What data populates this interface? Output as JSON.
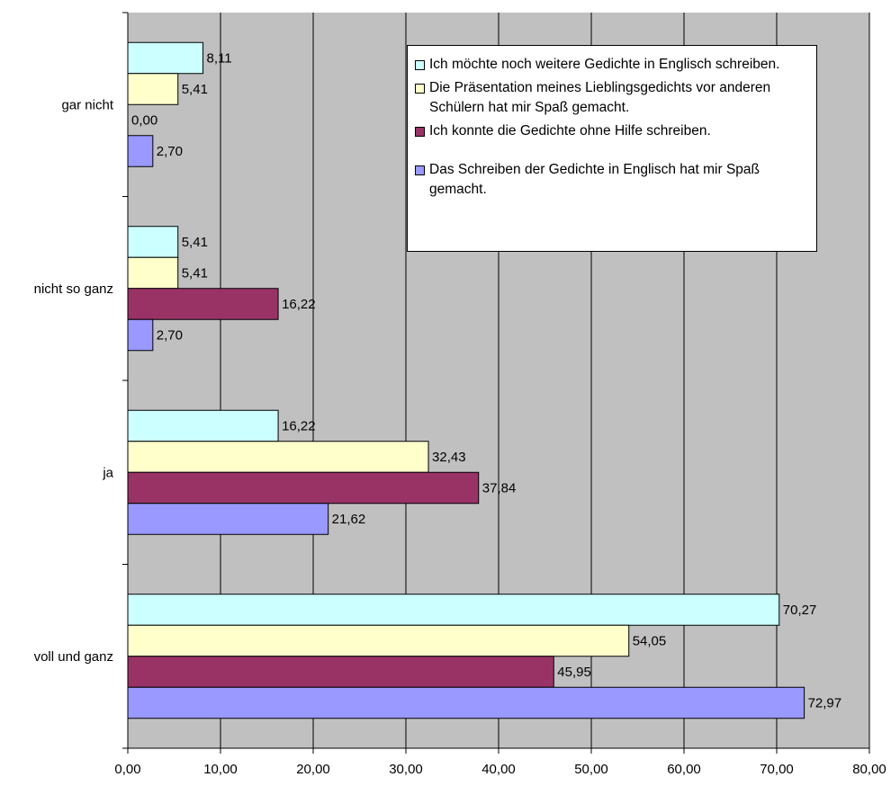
{
  "chart_data": {
    "type": "bar",
    "orientation": "horizontal",
    "categories": [
      "gar nicht",
      "nicht so ganz",
      "ja",
      "voll und ganz"
    ],
    "series": [
      {
        "name": "Ich möchte noch weitere Gedichte in Englisch schreiben.",
        "color": "#ccffff",
        "values": [
          8.11,
          5.41,
          16.22,
          70.27
        ],
        "labels": [
          "8,11",
          "5,41",
          "16,22",
          "70,27"
        ]
      },
      {
        "name": "Die Präsentation meines Lieblingsgedichts vor anderen Schülern hat mir Spaß gemacht.",
        "color": "#ffffcc",
        "values": [
          5.41,
          5.41,
          32.43,
          54.05
        ],
        "labels": [
          "5,41",
          "5,41",
          "32,43",
          "54,05"
        ]
      },
      {
        "name": "Ich konnte die Gedichte ohne Hilfe schreiben.",
        "color": "#993366",
        "values": [
          0.0,
          16.22,
          37.84,
          45.95
        ],
        "labels": [
          "0,00",
          "16,22",
          "37,84",
          "45,95"
        ]
      },
      {
        "name": "Das Schreiben der Gedichte in Englisch hat mir Spaß gemacht.",
        "color": "#9999ff",
        "values": [
          2.7,
          2.7,
          21.62,
          72.97
        ],
        "labels": [
          "2,70",
          "2,70",
          "21,62",
          "72,97"
        ]
      }
    ],
    "xlim": [
      0,
      80
    ],
    "xticks": [
      0,
      10,
      20,
      30,
      40,
      50,
      60,
      70,
      80
    ],
    "xtick_labels": [
      "0,00",
      "10,00",
      "20,00",
      "30,00",
      "40,00",
      "50,00",
      "60,00",
      "70,00",
      "80,00"
    ],
    "grid": true,
    "plot_background": "#c0c0c0",
    "legend_position": "top-right"
  }
}
